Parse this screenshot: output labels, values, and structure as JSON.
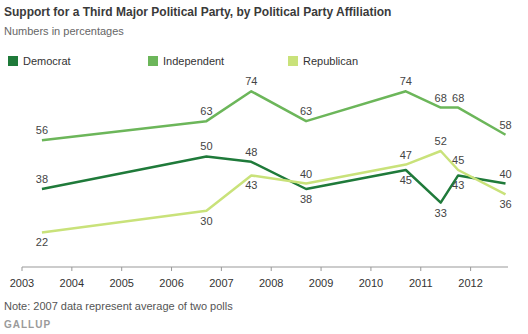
{
  "chart_data": {
    "type": "line",
    "title": "Support for a Third Major Political Party, by Political Party Affiliation",
    "subtitle": "Numbers in percentages",
    "annotations": [
      "Note: 2007 data represent average of two polls",
      "GALLUP"
    ],
    "x": [
      2003.4,
      2006.7,
      2007.6,
      2008.7,
      2010.7,
      2011.4,
      2011.75,
      2012.7
    ],
    "xlim": [
      2003,
      2012.75
    ],
    "xticks": [
      2003,
      2004,
      2005,
      2006,
      2007,
      2008,
      2009,
      2010,
      2011,
      2012
    ],
    "ylim": [
      10,
      80
    ],
    "series": [
      {
        "name": "Democrat",
        "color": "#1f7a3a",
        "values": [
          38,
          50,
          48,
          38,
          45,
          33,
          43,
          40
        ]
      },
      {
        "name": "Independent",
        "color": "#6cb65a",
        "values": [
          56,
          63,
          74,
          63,
          74,
          68,
          68,
          58
        ]
      },
      {
        "name": "Republican",
        "color": "#c9e27a",
        "values": [
          22,
          30,
          43,
          40,
          47,
          52,
          45,
          36
        ]
      }
    ],
    "data_labels": true,
    "tick_labels": "x",
    "grid": false,
    "legend": "top-left"
  }
}
